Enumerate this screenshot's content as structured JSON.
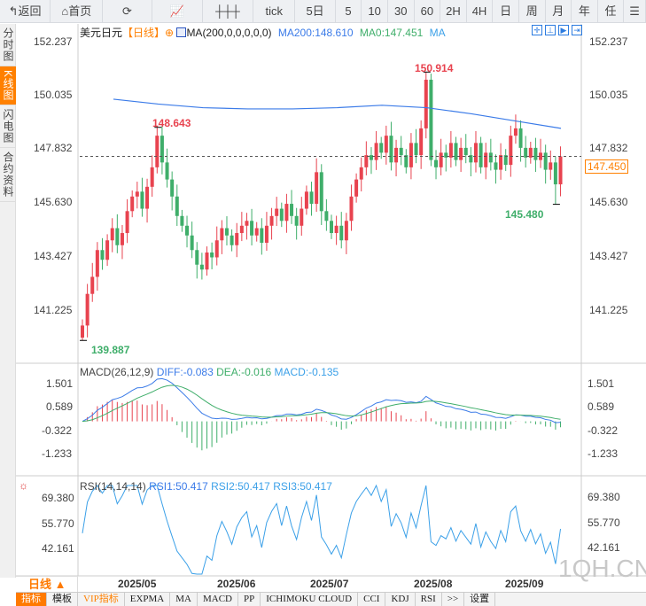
{
  "toolbar": {
    "items": [
      "↰返回",
      "⌂首页",
      "⟳",
      "📈",
      "┼┼┼",
      "tick",
      "5日",
      "5",
      "10",
      "30",
      "60",
      "2H",
      "4H",
      "日",
      "周",
      "月",
      "年",
      "任",
      "☰"
    ]
  },
  "sidebar": {
    "tabs": [
      "分时图",
      "K线图",
      "闪电图",
      "合约资料"
    ],
    "active": 1
  },
  "legend": {
    "symbol": "美元日元",
    "period": "【日线】",
    "ma_label": "MA(200,0,0,0,0,0)",
    "ma200": "MA200:148.610",
    "ma0": "MA0:147.451",
    "ma": "MA"
  },
  "macd": {
    "label": "MACD(26,12,9)",
    "diff": "DIFF:-0.083",
    "dea": "DEA:-0.016",
    "macd": "MACD:-0.135"
  },
  "rsi": {
    "label": "RSI(14,14,14)",
    "rsi1": "RSI1:50.417",
    "rsi2": "RSI2:50.417",
    "rsi3": "RSI3:50.417"
  },
  "price_axis": [
    "152.237",
    "150.035",
    "147.832",
    "145.630",
    "143.427",
    "141.225"
  ],
  "macd_axis": [
    "1.501",
    "0.589",
    "-0.322",
    "-1.233"
  ],
  "rsi_axis": [
    "69.380",
    "55.770",
    "42.161"
  ],
  "current_price": "147.450",
  "annotations": {
    "high1": "148.643",
    "high2": "150.914",
    "low1": "139.887",
    "low2": "145.480"
  },
  "dates": [
    "2025/05",
    "2025/06",
    "2025/07",
    "2025/08",
    "2025/09"
  ],
  "period_button": "日线 ▲",
  "bottom": [
    "指标",
    "模板",
    "VIP指标",
    "EXPMA",
    "MA",
    "MACD",
    "PP",
    "ICHIMOKU CLOUD",
    "CCI",
    "KDJ",
    "RSI",
    ">>",
    "设置"
  ],
  "watermark": "1QH.CN",
  "colors": {
    "up": "#e8434f",
    "down": "#3fae6a",
    "ma200": "#3b7be8",
    "accent": "#ff7a00"
  },
  "chart_data": {
    "type": "candlestick",
    "ylim": [
      139.5,
      152.8
    ],
    "closes": [
      140.5,
      141.8,
      142.5,
      143.6,
      143.2,
      144.0,
      144.5,
      143.8,
      144.3,
      145.2,
      145.8,
      146.0,
      145.3,
      146.2,
      147.0,
      148.3,
      147.2,
      146.5,
      145.8,
      145.0,
      144.6,
      144.2,
      143.6,
      143.0,
      142.8,
      143.5,
      143.3,
      144.0,
      144.5,
      144.2,
      143.8,
      144.3,
      144.6,
      144.8,
      144.2,
      144.5,
      143.9,
      144.6,
      145.0,
      145.3,
      144.8,
      145.5,
      145.0,
      144.6,
      145.3,
      146.0,
      145.5,
      146.8,
      145.2,
      144.8,
      144.3,
      144.6,
      144.0,
      144.8,
      145.8,
      146.5,
      147.0,
      147.5,
      147.3,
      148.0,
      147.6,
      148.3,
      147.2,
      147.8,
      147.5,
      147.0,
      148.0,
      147.5,
      148.6,
      150.6,
      147.3,
      147.0,
      147.6,
      147.4,
      148.0,
      147.3,
      147.8,
      147.5,
      147.2,
      148.0,
      147.0,
      147.6,
      147.2,
      146.9,
      147.5,
      147.1,
      148.3,
      148.6,
      147.8,
      147.4,
      147.8,
      147.3,
      147.6,
      146.9,
      147.2,
      146.3,
      147.45
    ],
    "ma200": [
      149.8,
      149.6,
      149.45,
      149.4,
      149.4,
      149.45,
      149.55,
      149.45,
      149.2,
      148.9,
      148.6
    ]
  }
}
